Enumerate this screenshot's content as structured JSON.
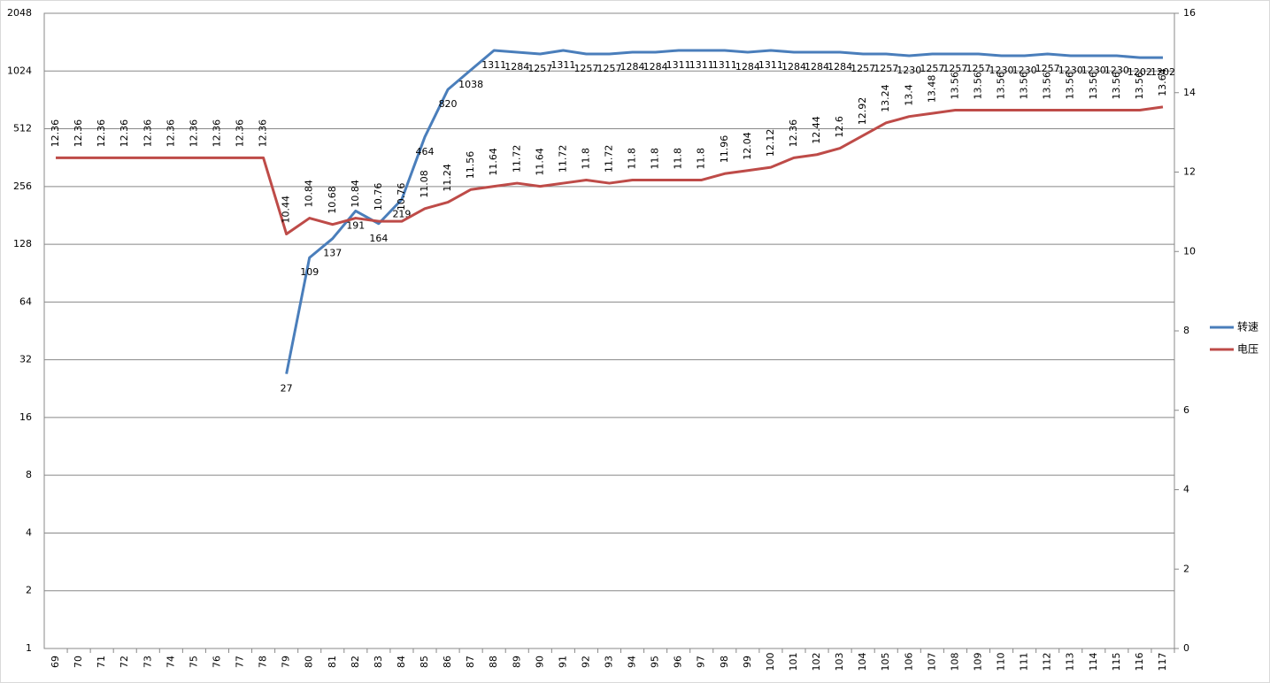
{
  "chart_data": {
    "type": "line",
    "categories": [
      "69",
      "70",
      "71",
      "72",
      "73",
      "74",
      "75",
      "76",
      "77",
      "78",
      "79",
      "80",
      "81",
      "82",
      "83",
      "84",
      "85",
      "86",
      "87",
      "88",
      "89",
      "90",
      "91",
      "92",
      "93",
      "94",
      "95",
      "96",
      "97",
      "98",
      "99",
      "100",
      "101",
      "102",
      "103",
      "104",
      "105",
      "106",
      "107",
      "108",
      "109",
      "110",
      "111",
      "112",
      "113",
      "114",
      "115",
      "116",
      "117"
    ],
    "series": [
      {
        "name": "转速",
        "color": "#4a7ebb",
        "axis": "y",
        "values": [
          null,
          null,
          null,
          null,
          null,
          null,
          null,
          null,
          null,
          null,
          27,
          109,
          137,
          191,
          164,
          219,
          464,
          820,
          1038,
          1311,
          1284,
          1257,
          1311,
          1257,
          1257,
          1284,
          1284,
          1311,
          1311,
          1311,
          1284,
          1311,
          1284,
          1284,
          1284,
          1257,
          1257,
          1230,
          1257,
          1257,
          1257,
          1230,
          1230,
          1257,
          1230,
          1230,
          1230,
          1202,
          1202
        ]
      },
      {
        "name": "电压",
        "color": "#be4b48",
        "axis": "y2",
        "values": [
          12.36,
          12.36,
          12.36,
          12.36,
          12.36,
          12.36,
          12.36,
          12.36,
          12.36,
          12.36,
          10.44,
          10.84,
          10.68,
          10.84,
          10.76,
          10.76,
          11.08,
          11.24,
          11.56,
          11.64,
          11.72,
          11.64,
          11.72,
          11.8,
          11.72,
          11.8,
          11.8,
          11.8,
          11.8,
          11.96,
          12.04,
          12.12,
          12.36,
          12.44,
          12.6,
          12.92,
          13.24,
          13.4,
          13.48,
          13.56,
          13.56,
          13.56,
          13.56,
          13.56,
          13.56,
          13.56,
          13.56,
          13.56,
          13.64
        ]
      }
    ],
    "ylim": [
      1,
      2048
    ],
    "yticks": [
      1,
      2,
      4,
      8,
      16,
      32,
      64,
      128,
      256,
      512,
      1024,
      2048
    ],
    "y_scale": "log",
    "y2lim": [
      0,
      16
    ],
    "y2ticks": [
      0,
      2,
      4,
      6,
      8,
      10,
      12,
      14,
      16
    ],
    "grid": true,
    "legend": "right"
  }
}
